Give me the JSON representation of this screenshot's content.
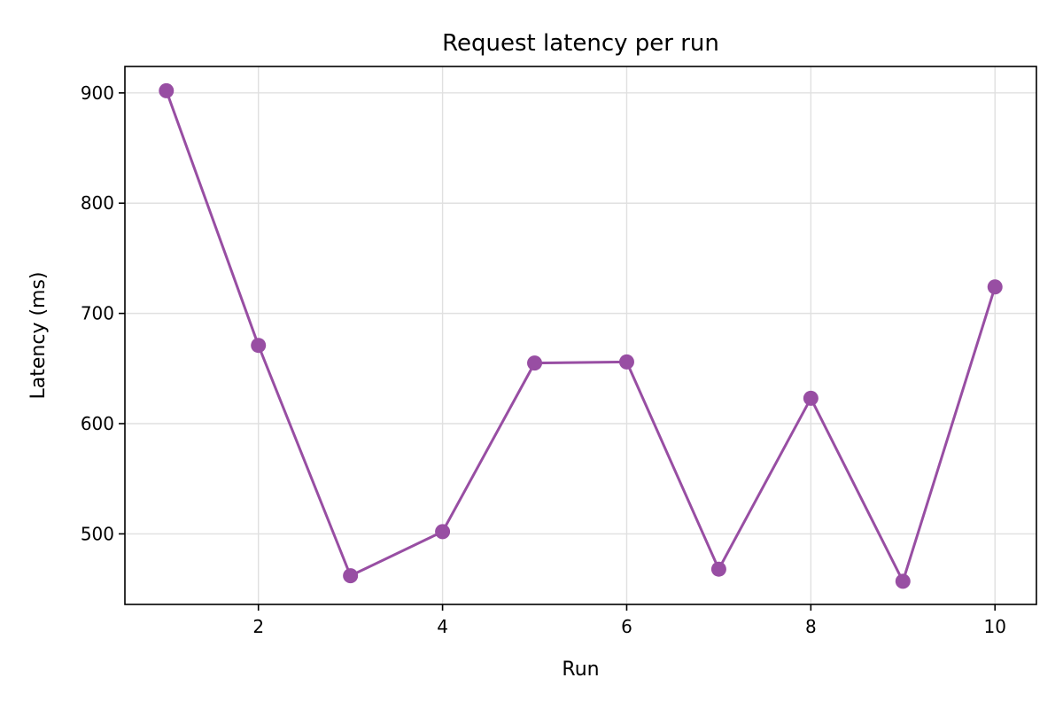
{
  "chart_data": {
    "type": "line",
    "title": "Request latency per run",
    "xlabel": "Run",
    "ylabel": "Latency (ms)",
    "x": [
      1,
      2,
      3,
      4,
      5,
      6,
      7,
      8,
      9,
      10
    ],
    "series": [
      {
        "values": [
          902,
          671,
          462,
          502,
          655,
          656,
          468,
          623,
          457,
          724
        ],
        "color": "#984ea3",
        "marker": "circle"
      }
    ],
    "xticks": [
      2,
      4,
      6,
      8,
      10
    ],
    "yticks": [
      500,
      600,
      700,
      800,
      900
    ],
    "xlim": [
      0.55,
      10.45
    ],
    "ylim": [
      436,
      924
    ],
    "grid": true,
    "legend": "none"
  }
}
